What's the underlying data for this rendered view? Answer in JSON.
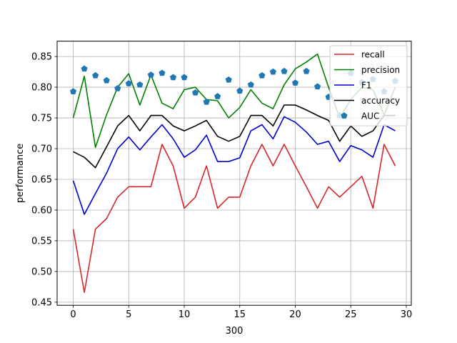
{
  "chart_data": {
    "type": "line",
    "xlabel": "300",
    "ylabel": "performance",
    "xlim": [
      -1.45,
      30.45
    ],
    "ylim": [
      0.445,
      0.875
    ],
    "xticks": [
      0,
      5,
      10,
      15,
      20,
      25,
      30
    ],
    "yticks": [
      0.45,
      0.5,
      0.55,
      0.6,
      0.65,
      0.7,
      0.75,
      0.8,
      0.85
    ],
    "ytick_labels": [
      "0.45",
      "0.50",
      "0.55",
      "0.60",
      "0.65",
      "0.70",
      "0.75",
      "0.80",
      "0.85"
    ],
    "grid": true,
    "legend_position": "top-right",
    "x": [
      0,
      1,
      2,
      3,
      4,
      5,
      6,
      7,
      8,
      9,
      10,
      11,
      12,
      13,
      14,
      15,
      16,
      17,
      18,
      19,
      20,
      21,
      22,
      23,
      24,
      25,
      26,
      27,
      28,
      29
    ],
    "series": [
      {
        "name": "recall",
        "color": "#d62728",
        "marker": "none",
        "values": [
          0.569,
          0.466,
          0.569,
          0.586,
          0.621,
          0.638,
          0.638,
          0.638,
          0.707,
          0.672,
          0.603,
          0.621,
          0.672,
          0.603,
          0.621,
          0.621,
          0.672,
          0.707,
          0.672,
          0.707,
          0.672,
          0.638,
          0.603,
          0.638,
          0.621,
          0.638,
          0.655,
          0.603,
          0.707,
          0.672
        ]
      },
      {
        "name": "precision",
        "color": "#008000",
        "marker": "none",
        "values": [
          0.75,
          0.818,
          0.702,
          0.755,
          0.8,
          0.822,
          0.771,
          0.82,
          0.774,
          0.765,
          0.796,
          0.8,
          0.78,
          0.778,
          0.75,
          0.767,
          0.796,
          0.774,
          0.765,
          0.804,
          0.83,
          0.841,
          0.854,
          0.8,
          0.75,
          0.78,
          0.8,
          0.796,
          0.755,
          0.8
        ]
      },
      {
        "name": "F1",
        "color": "#0000cc",
        "marker": "none",
        "values": [
          0.648,
          0.593,
          0.627,
          0.66,
          0.7,
          0.719,
          0.698,
          0.719,
          0.739,
          0.716,
          0.686,
          0.698,
          0.722,
          0.679,
          0.679,
          0.685,
          0.729,
          0.739,
          0.716,
          0.752,
          0.743,
          0.727,
          0.707,
          0.712,
          0.679,
          0.705,
          0.698,
          0.686,
          0.739,
          0.729
        ]
      },
      {
        "name": "accuracy",
        "color": "#000000",
        "marker": "none",
        "values": [
          0.695,
          0.686,
          0.669,
          0.703,
          0.737,
          0.754,
          0.729,
          0.754,
          0.754,
          0.737,
          0.729,
          0.737,
          0.746,
          0.72,
          0.712,
          0.72,
          0.754,
          0.754,
          0.737,
          0.771,
          0.771,
          0.763,
          0.754,
          0.746,
          0.712,
          0.737,
          0.72,
          0.729,
          0.754,
          0.754
        ]
      },
      {
        "name": "AUC",
        "color": "#1f77b4",
        "marker": "pentagon",
        "values": [
          0.793,
          0.83,
          0.819,
          0.811,
          0.798,
          0.806,
          0.804,
          0.82,
          0.823,
          0.816,
          0.816,
          0.791,
          0.776,
          0.785,
          0.812,
          0.794,
          0.804,
          0.819,
          0.825,
          0.826,
          0.807,
          0.826,
          0.801,
          0.784,
          0.754,
          0.823,
          0.808,
          0.813,
          0.793,
          0.81
        ]
      }
    ]
  }
}
